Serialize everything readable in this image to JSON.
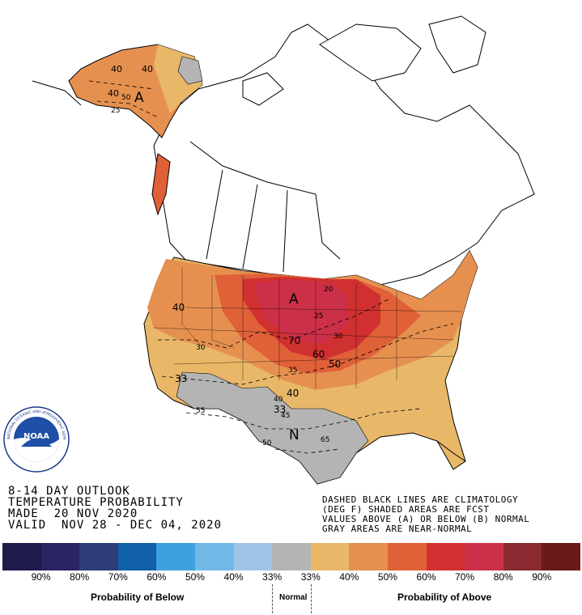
{
  "title": {
    "line1": "8-14 DAY OUTLOOK",
    "line2": "TEMPERATURE PROBABILITY",
    "line3": "MADE  20 NOV 2020",
    "line4": "VALID  NOV 28 - DEC 04, 2020"
  },
  "notes": {
    "line1": "DASHED BLACK LINES ARE CLIMATOLOGY",
    "line2": "(DEG F) SHADED AREAS ARE FCST",
    "line3": "VALUES ABOVE (A) OR BELOW (B) NORMAL",
    "line4": "GRAY AREAS ARE NEAR-NORMAL"
  },
  "logo": {
    "text": "NOAA",
    "ring": "NATIONAL OCEANIC AND ATMOSPHERIC ADMINISTRATION"
  },
  "map_labels": {
    "alaska_a": "A",
    "central_a": "A",
    "south_n": "N",
    "ak40a": "40",
    "ak40b": "40",
    "ak40c": "40",
    "ak50": "50",
    "ak25": "25",
    "c20": "20",
    "c25": "25",
    "c70": "70",
    "c30": "30",
    "c60": "60",
    "c50": "50",
    "c35": "35",
    "w40": "40",
    "w30": "30",
    "s33a": "33",
    "s55": "55",
    "s40a": "40",
    "s40b": "40",
    "s33b": "33",
    "s45": "45",
    "s50": "50",
    "s65": "65"
  },
  "legend": {
    "below_caption": "Probability of Below",
    "normal_caption": "Normal",
    "above_caption": "Probability of Above",
    "ticks": [
      "90%",
      "80%",
      "70%",
      "60%",
      "50%",
      "40%",
      "33%",
      "33%",
      "40%",
      "50%",
      "60%",
      "70%",
      "80%",
      "90%"
    ],
    "colors": [
      "#1e1a4b",
      "#2a2463",
      "#2d3d79",
      "#1060a8",
      "#3ea0de",
      "#70b8e8",
      "#a0c4e6",
      "#b4b4b4",
      "#e8b868",
      "#e69050",
      "#e06038",
      "#d03030",
      "#cc3049",
      "#8a2a30",
      "#6a1a18"
    ]
  }
}
